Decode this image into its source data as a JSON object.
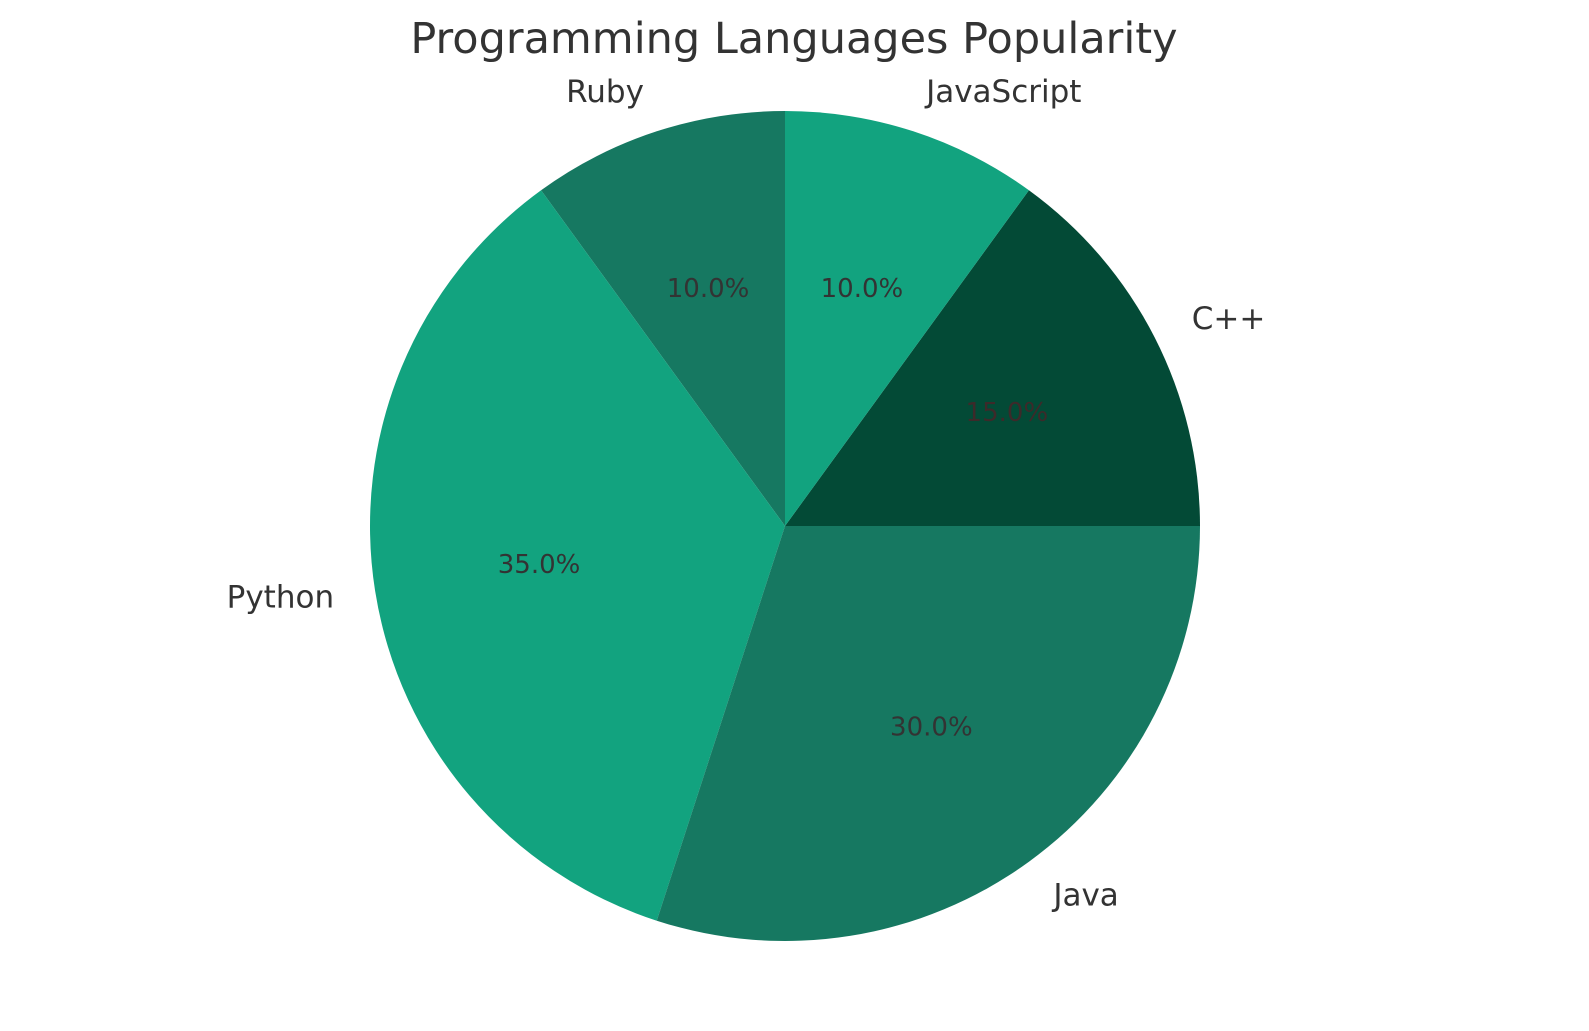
{
  "chart_data": {
    "type": "pie",
    "title": "Programming Languages Popularity",
    "start_angle_deg": 90,
    "direction": "counterclockwise",
    "slices": [
      {
        "label": "Ruby",
        "value": 10,
        "percent_label": "10.0%",
        "color": "#167861",
        "label_color": "#333333"
      },
      {
        "label": "Python",
        "value": 35,
        "percent_label": "35.0%",
        "color": "#12a37f",
        "label_color": "#333333"
      },
      {
        "label": "Java",
        "value": 30,
        "percent_label": "30.0%",
        "color": "#167861",
        "label_color": "#333333"
      },
      {
        "label": "C++",
        "value": 15,
        "percent_label": "15.0%",
        "color": "#034a36",
        "label_color": "#3d2a2a"
      },
      {
        "label": "JavaScript",
        "value": 10,
        "percent_label": "10.0%",
        "color": "#12a37f",
        "label_color": "#333333"
      }
    ]
  }
}
